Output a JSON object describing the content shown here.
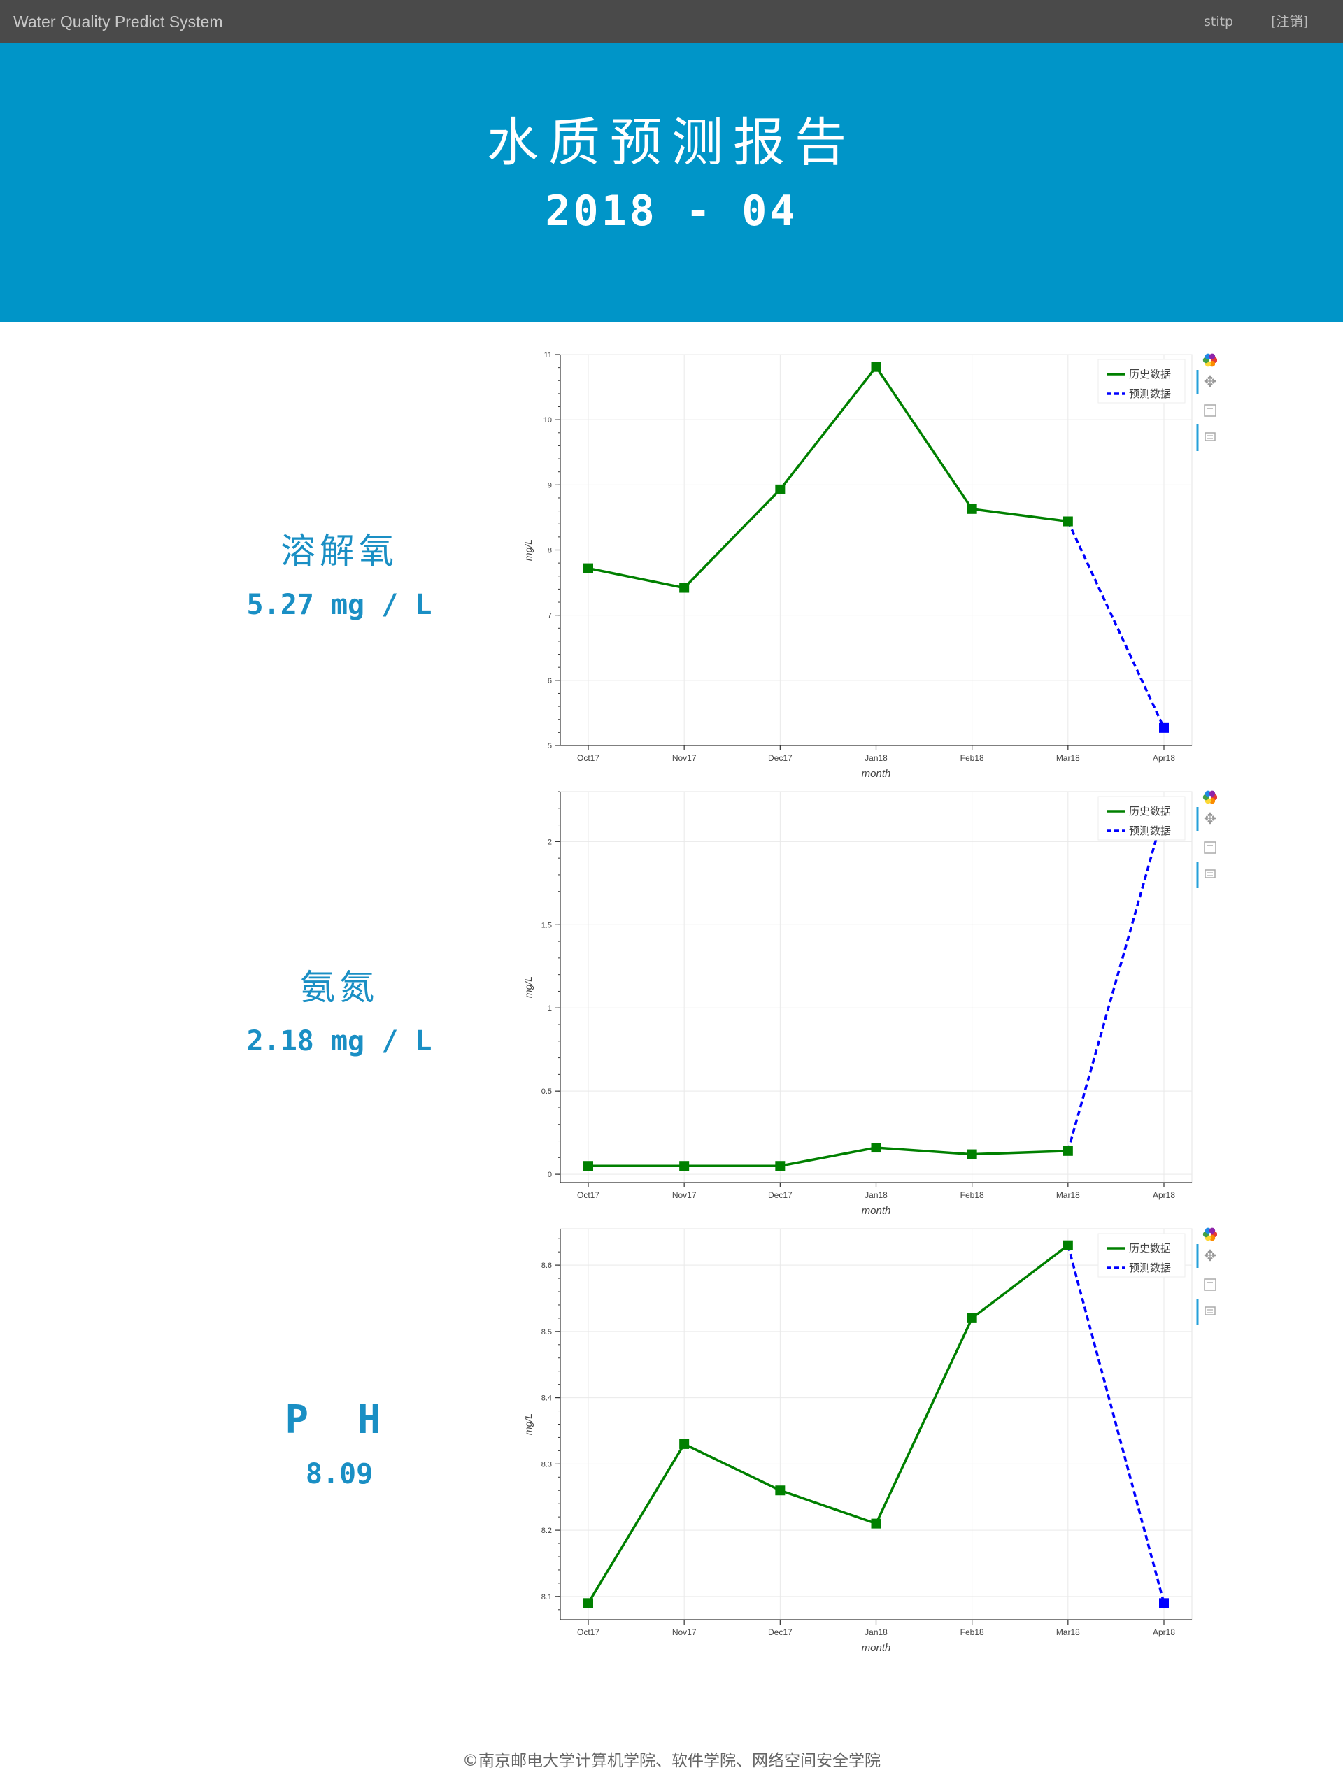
{
  "navbar": {
    "brand": "Water Quality Predict System",
    "user": "stitp",
    "logout": "[注销]"
  },
  "banner": {
    "title": "水质预测报告",
    "date": "2018 - 04"
  },
  "metrics": [
    {
      "name": "溶解氧",
      "value": "5.27 mg / L"
    },
    {
      "name": "氨氮",
      "value": "2.18 mg / L"
    },
    {
      "name": "P H",
      "value": "8.09"
    }
  ],
  "footer": "©南京邮电大学计算机学院、软件学院、网络空间安全学院",
  "colors": {
    "navbar": "#4a4a4a",
    "banner": "#0095c8",
    "metric_text": "#1a8fc4",
    "history_line": "#008000",
    "prediction_line": "#0000ff"
  },
  "toolbar_icons": [
    "bokeh-logo-icon",
    "pan-icon",
    "save-icon",
    "hover-icon"
  ],
  "chart_data": [
    {
      "type": "line",
      "categories": [
        "Oct17",
        "Nov17",
        "Dec17",
        "Jan18",
        "Feb18",
        "Mar18",
        "Apr18"
      ],
      "xlabel": "month",
      "ylabel": "mg/L",
      "ylim": [
        5,
        11
      ],
      "yticks": [
        "5",
        "6",
        "7",
        "8",
        "9",
        "10",
        "11"
      ],
      "ytick_values": [
        5,
        6,
        7,
        8,
        9,
        10,
        11
      ],
      "legend_position": "top-right",
      "grid": true,
      "series": [
        {
          "name": "历史数据",
          "x": [
            0,
            1,
            2,
            3,
            4,
            5
          ],
          "values": [
            7.72,
            7.42,
            8.93,
            10.81,
            8.63,
            8.44
          ]
        },
        {
          "name": "预测数据",
          "x": [
            5,
            6
          ],
          "values": [
            8.44,
            5.27
          ]
        }
      ]
    },
    {
      "type": "line",
      "categories": [
        "Oct17",
        "Nov17",
        "Dec17",
        "Jan18",
        "Feb18",
        "Mar18",
        "Apr18"
      ],
      "xlabel": "month",
      "ylabel": "mg/L",
      "ylim": [
        -0.05,
        2.3
      ],
      "yticks": [
        "0",
        "0.5",
        "1",
        "1.5",
        "2"
      ],
      "ytick_values": [
        0,
        0.5,
        1,
        1.5,
        2
      ],
      "legend_position": "top-right",
      "grid": true,
      "series": [
        {
          "name": "历史数据",
          "x": [
            0,
            1,
            2,
            3,
            4,
            5
          ],
          "values": [
            0.05,
            0.05,
            0.05,
            0.16,
            0.12,
            0.14
          ]
        },
        {
          "name": "预测数据",
          "x": [
            5,
            6
          ],
          "values": [
            0.14,
            2.18
          ]
        }
      ]
    },
    {
      "type": "line",
      "categories": [
        "Oct17",
        "Nov17",
        "Dec17",
        "Jan18",
        "Feb18",
        "Mar18",
        "Apr18"
      ],
      "xlabel": "month",
      "ylabel": "mg/L",
      "ylim": [
        8.065,
        8.655
      ],
      "yticks": [
        "8.1",
        "8.2",
        "8.3",
        "8.4",
        "8.5",
        "8.6"
      ],
      "ytick_values": [
        8.1,
        8.2,
        8.3,
        8.4,
        8.5,
        8.6
      ],
      "legend_position": "top-right",
      "grid": true,
      "series": [
        {
          "name": "历史数据",
          "x": [
            0,
            1,
            2,
            3,
            4,
            5
          ],
          "values": [
            8.09,
            8.33,
            8.26,
            8.21,
            8.52,
            8.63
          ]
        },
        {
          "name": "预测数据",
          "x": [
            5,
            6
          ],
          "values": [
            8.63,
            8.09
          ]
        }
      ]
    }
  ]
}
